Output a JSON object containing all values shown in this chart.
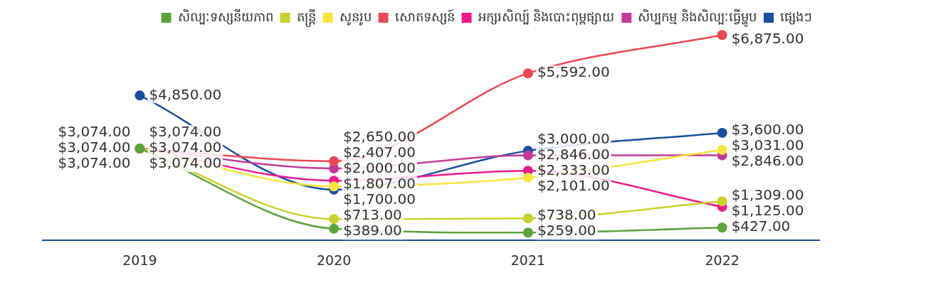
{
  "chart_data": {
    "type": "line",
    "categories": [
      "2019",
      "2020",
      "2021",
      "2022"
    ],
    "legend": "top",
    "marker": "circle",
    "series": [
      {
        "name": "សិល្បៈទស្សនីយភាព",
        "color": "#5ca33c",
        "values": [
          3074.0,
          389.0,
          259.0,
          427.0
        ],
        "value_labels": [
          "$3,074.00",
          "$389.00",
          "$259.00",
          "$427.00"
        ]
      },
      {
        "name": "តន្ត្រី",
        "color": "#c9d12c",
        "values": [
          3074.0,
          713.0,
          738.0,
          1309.0
        ],
        "value_labels": [
          "$3,074.00",
          "$713.00",
          "$738.00",
          "$1,309.00"
        ]
      },
      {
        "name": "សូនរូប",
        "color": "#f8e63e",
        "values": [
          3074.0,
          1807.0,
          2101.0,
          3031.0
        ],
        "value_labels": [
          "$3,074.00",
          "$1,807.00",
          "$2,101.00",
          "$3,031.00"
        ]
      },
      {
        "name": "សោតទស្សន៍",
        "color": "#ef4756",
        "values": [
          3074.0,
          2650.0,
          5592.0,
          6875.0
        ],
        "value_labels": [
          "$3,074.00",
          "$2,650.00",
          "$5,592.00",
          "$6,875.00"
        ]
      },
      {
        "name": "អក្សរសិល្ប៍ និងបោះពុម្ពផ្សាយ",
        "color": "#ec1a8d",
        "values": [
          3074.0,
          2000.0,
          2333.0,
          1125.0
        ],
        "value_labels": [
          "$3,074.00",
          "$2,000.00",
          "$2,333.00",
          "$1,125.00"
        ]
      },
      {
        "name": "សិប្បកម្ម និងសិល្បៈធ្វើម្ហូប",
        "color": "#c03c98",
        "values": [
          3074.0,
          2407.0,
          2846.0,
          2846.0
        ],
        "value_labels": [
          "$3,074.00",
          "$2,407.00",
          "$2,846.00",
          "$2,846.00"
        ]
      },
      {
        "name": "ផ្សេងៗ",
        "color": "#1b4fa0",
        "values": [
          4850.0,
          1700.0,
          3000.0,
          3600.0
        ],
        "value_labels": [
          "$4,850.00",
          "$1,700.00",
          "$3,000.00",
          "$3,600.00"
        ]
      }
    ]
  }
}
